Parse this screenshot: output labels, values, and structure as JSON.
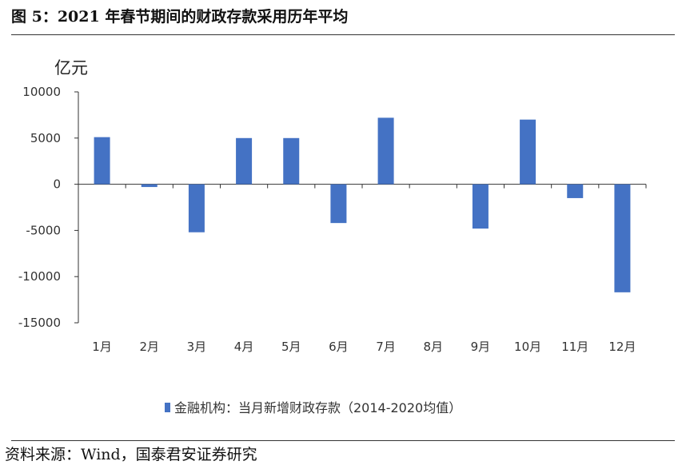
{
  "header": {
    "title": "图 5：2021 年春节期间的财政存款采用历年平均"
  },
  "footer": {
    "source": "资料来源：Wind，国泰君安证券研究"
  },
  "chart_data": {
    "type": "bar",
    "title": "",
    "ylabel": "亿元",
    "xlabel": "",
    "ylim": [
      -15000,
      10000
    ],
    "yticks": [
      10000,
      5000,
      0,
      -5000,
      -10000,
      -15000
    ],
    "categories": [
      "1月",
      "2月",
      "3月",
      "4月",
      "5月",
      "6月",
      "7月",
      "8月",
      "9月",
      "10月",
      "11月",
      "12月"
    ],
    "series": [
      {
        "name": "金融机构：当月新增财政存款（2014-2020均值）",
        "color": "#4472C4",
        "values": [
          5100,
          -300,
          -5200,
          5000,
          5000,
          -4200,
          7200,
          0,
          -4800,
          7000,
          -1500,
          -11700
        ]
      }
    ],
    "grid": false,
    "legend_position": "bottom"
  }
}
